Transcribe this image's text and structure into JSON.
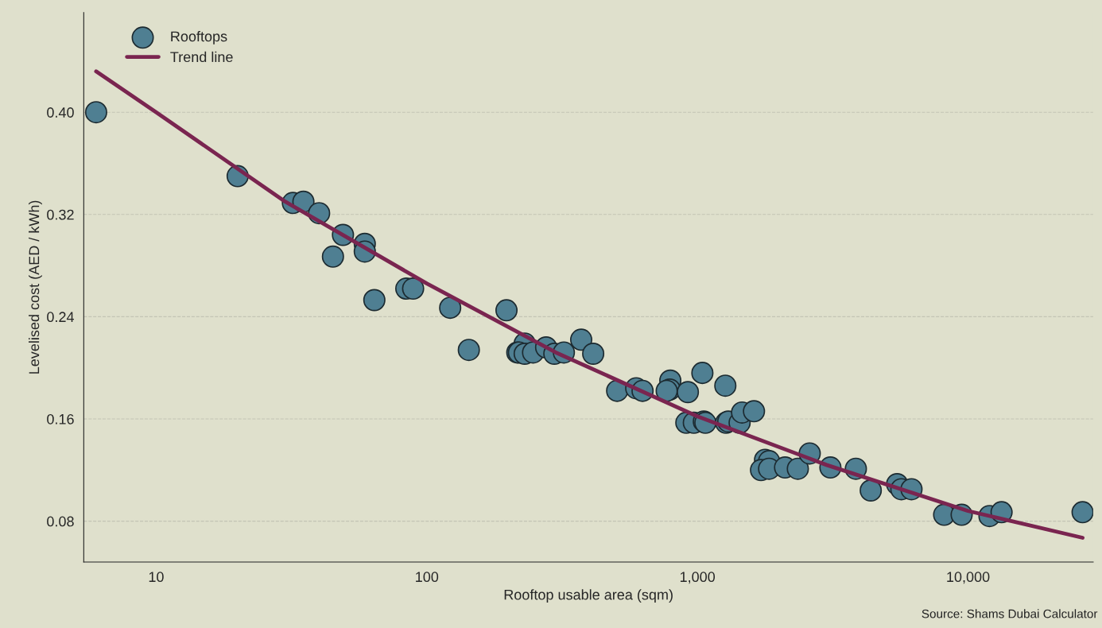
{
  "chart_data": {
    "type": "scatter",
    "xlabel": "Rooftop usable area (sqm)",
    "ylabel": "Levelised cost (AED / kWh)",
    "annotations": [
      "Source: Shams Dubai Calculator"
    ],
    "log": "x",
    "grid": "y",
    "legend": "top left",
    "xlim": [
      5.4,
      29000
    ],
    "ylim": [
      0.048,
      0.478
    ],
    "xticks": [
      10,
      100,
      {
        "value": 1000,
        "label": "1,000"
      },
      {
        "value": 10000,
        "label": "10,000"
      }
    ],
    "yticks": [
      {
        "value": 0.08,
        "label": "0.08"
      },
      {
        "value": 0.16,
        "label": "0.16"
      },
      {
        "value": 0.24,
        "label": "0.24"
      },
      {
        "value": 0.32,
        "label": "0.32"
      },
      {
        "value": 0.4,
        "label": "0.40"
      }
    ],
    "series": [
      {
        "name": "Rooftops",
        "marker": "circle",
        "color": "#4f7f92",
        "x": [
          6,
          20,
          32,
          35,
          40,
          49,
          45,
          59,
          59,
          64,
          84,
          89,
          122,
          143,
          197,
          230,
          216,
          219,
          230,
          247,
          276,
          296,
          321,
          372,
          412,
          505,
          594,
          627,
          794,
          790,
          770,
          922,
          1043,
          1268,
          910,
          970,
          1056,
          1070,
          1276,
          1300,
          1432,
          1462,
          1618,
          1778,
          1840,
          1718,
          1840,
          2108,
          2350,
          2600,
          3100,
          3850,
          4370,
          5470,
          5670,
          6180,
          8160,
          9470,
          12000,
          13300,
          26500
        ],
        "values": [
          0.4,
          0.35,
          0.329,
          0.33,
          0.321,
          0.304,
          0.287,
          0.297,
          0.291,
          0.253,
          0.262,
          0.262,
          0.247,
          0.214,
          0.245,
          0.219,
          0.212,
          0.212,
          0.211,
          0.212,
          0.216,
          0.211,
          0.212,
          0.222,
          0.211,
          0.182,
          0.184,
          0.182,
          0.19,
          0.183,
          0.182,
          0.181,
          0.196,
          0.186,
          0.157,
          0.157,
          0.158,
          0.157,
          0.157,
          0.158,
          0.157,
          0.165,
          0.166,
          0.128,
          0.127,
          0.12,
          0.121,
          0.122,
          0.121,
          0.133,
          0.122,
          0.121,
          0.104,
          0.109,
          0.105,
          0.105,
          0.085,
          0.085,
          0.084,
          0.087,
          0.087
        ]
      },
      {
        "name": "Trend line",
        "type": "line",
        "color": "#7a2550",
        "x": [
          6,
          10,
          30,
          100,
          300,
          1000,
          3000,
          10000,
          26500
        ],
        "values": [
          0.432,
          0.4,
          0.33,
          0.266,
          0.212,
          0.162,
          0.124,
          0.088,
          0.067
        ]
      }
    ]
  }
}
